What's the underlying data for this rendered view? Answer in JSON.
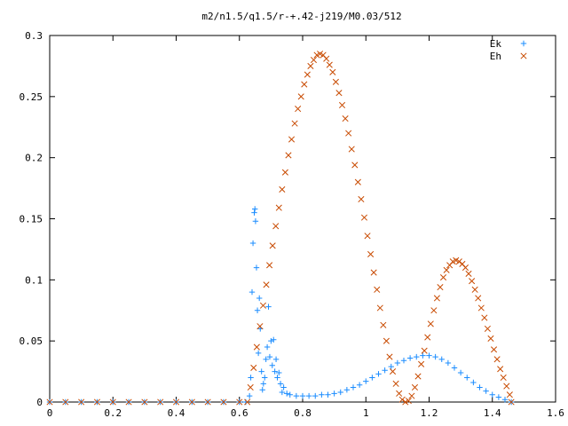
{
  "chart_data": {
    "type": "scatter",
    "title": "m2/n1.5/q1.5/r-+.42-j219/M0.03/512",
    "xlabel": "",
    "ylabel": "",
    "xlim": [
      0,
      1.6
    ],
    "ylim": [
      0,
      0.3
    ],
    "x_ticks": [
      "0",
      "0.2",
      "0.4",
      "0.6",
      "0.8",
      "1",
      "1.2",
      "1.4",
      "1.6"
    ],
    "y_ticks": [
      "0",
      "0.05",
      "0.1",
      "0.15",
      "0.2",
      "0.25",
      "0.3"
    ],
    "legend_position": "top-right",
    "grid": false,
    "series": [
      {
        "name": "Ek",
        "marker": "plus",
        "color": "#1a8cff",
        "points": [
          [
            0.0,
            0.0
          ],
          [
            0.05,
            0.0
          ],
          [
            0.1,
            0.0
          ],
          [
            0.15,
            0.0
          ],
          [
            0.2,
            0.0
          ],
          [
            0.25,
            0.0
          ],
          [
            0.3,
            0.0
          ],
          [
            0.35,
            0.0
          ],
          [
            0.4,
            0.0
          ],
          [
            0.45,
            0.0
          ],
          [
            0.5,
            0.0
          ],
          [
            0.55,
            0.0
          ],
          [
            0.6,
            0.0
          ],
          [
            0.62,
            0.0
          ],
          [
            0.632,
            0.005
          ],
          [
            0.636,
            0.02
          ],
          [
            0.64,
            0.09
          ],
          [
            0.643,
            0.13
          ],
          [
            0.647,
            0.155
          ],
          [
            0.649,
            0.158
          ],
          [
            0.651,
            0.148
          ],
          [
            0.654,
            0.11
          ],
          [
            0.657,
            0.075
          ],
          [
            0.66,
            0.04
          ],
          [
            0.663,
            0.085
          ],
          [
            0.666,
            0.06
          ],
          [
            0.67,
            0.025
          ],
          [
            0.673,
            0.01
          ],
          [
            0.676,
            0.015
          ],
          [
            0.68,
            0.02
          ],
          [
            0.684,
            0.035
          ],
          [
            0.688,
            0.045
          ],
          [
            0.692,
            0.078
          ],
          [
            0.696,
            0.037
          ],
          [
            0.7,
            0.05
          ],
          [
            0.704,
            0.03
          ],
          [
            0.708,
            0.051
          ],
          [
            0.712,
            0.025
          ],
          [
            0.716,
            0.035
          ],
          [
            0.72,
            0.02
          ],
          [
            0.725,
            0.024
          ],
          [
            0.73,
            0.015
          ],
          [
            0.735,
            0.008
          ],
          [
            0.74,
            0.012
          ],
          [
            0.75,
            0.007
          ],
          [
            0.76,
            0.006
          ],
          [
            0.78,
            0.005
          ],
          [
            0.8,
            0.005
          ],
          [
            0.82,
            0.005
          ],
          [
            0.84,
            0.005
          ],
          [
            0.86,
            0.006
          ],
          [
            0.88,
            0.006
          ],
          [
            0.9,
            0.007
          ],
          [
            0.92,
            0.008
          ],
          [
            0.94,
            0.01
          ],
          [
            0.96,
            0.012
          ],
          [
            0.98,
            0.014
          ],
          [
            1.0,
            0.017
          ],
          [
            1.02,
            0.02
          ],
          [
            1.04,
            0.023
          ],
          [
            1.06,
            0.026
          ],
          [
            1.08,
            0.029
          ],
          [
            1.1,
            0.032
          ],
          [
            1.12,
            0.034
          ],
          [
            1.14,
            0.036
          ],
          [
            1.16,
            0.037
          ],
          [
            1.18,
            0.038
          ],
          [
            1.2,
            0.038
          ],
          [
            1.22,
            0.037
          ],
          [
            1.24,
            0.035
          ],
          [
            1.26,
            0.032
          ],
          [
            1.28,
            0.028
          ],
          [
            1.3,
            0.024
          ],
          [
            1.32,
            0.02
          ],
          [
            1.34,
            0.016
          ],
          [
            1.36,
            0.012
          ],
          [
            1.38,
            0.009
          ],
          [
            1.4,
            0.006
          ],
          [
            1.42,
            0.004
          ],
          [
            1.44,
            0.002
          ],
          [
            1.46,
            0.0
          ]
        ]
      },
      {
        "name": "Eh",
        "marker": "cross",
        "color": "#c84a00",
        "points": [
          [
            0.0,
            0.0
          ],
          [
            0.05,
            0.0
          ],
          [
            0.1,
            0.0
          ],
          [
            0.15,
            0.0
          ],
          [
            0.2,
            0.0
          ],
          [
            0.25,
            0.0
          ],
          [
            0.3,
            0.0
          ],
          [
            0.35,
            0.0
          ],
          [
            0.4,
            0.0
          ],
          [
            0.45,
            0.0
          ],
          [
            0.5,
            0.0
          ],
          [
            0.55,
            0.0
          ],
          [
            0.6,
            0.0
          ],
          [
            0.625,
            0.0
          ],
          [
            0.635,
            0.012
          ],
          [
            0.645,
            0.028
          ],
          [
            0.655,
            0.045
          ],
          [
            0.665,
            0.062
          ],
          [
            0.675,
            0.079
          ],
          [
            0.685,
            0.096
          ],
          [
            0.695,
            0.112
          ],
          [
            0.705,
            0.128
          ],
          [
            0.715,
            0.144
          ],
          [
            0.725,
            0.159
          ],
          [
            0.735,
            0.174
          ],
          [
            0.745,
            0.188
          ],
          [
            0.755,
            0.202
          ],
          [
            0.765,
            0.215
          ],
          [
            0.775,
            0.228
          ],
          [
            0.785,
            0.24
          ],
          [
            0.795,
            0.25
          ],
          [
            0.805,
            0.26
          ],
          [
            0.815,
            0.268
          ],
          [
            0.825,
            0.275
          ],
          [
            0.835,
            0.28
          ],
          [
            0.845,
            0.284
          ],
          [
            0.855,
            0.285
          ],
          [
            0.865,
            0.284
          ],
          [
            0.875,
            0.281
          ],
          [
            0.885,
            0.276
          ],
          [
            0.895,
            0.27
          ],
          [
            0.905,
            0.262
          ],
          [
            0.915,
            0.253
          ],
          [
            0.925,
            0.243
          ],
          [
            0.935,
            0.232
          ],
          [
            0.945,
            0.22
          ],
          [
            0.955,
            0.207
          ],
          [
            0.965,
            0.194
          ],
          [
            0.975,
            0.18
          ],
          [
            0.985,
            0.166
          ],
          [
            0.995,
            0.151
          ],
          [
            1.005,
            0.136
          ],
          [
            1.015,
            0.121
          ],
          [
            1.025,
            0.106
          ],
          [
            1.035,
            0.092
          ],
          [
            1.045,
            0.077
          ],
          [
            1.055,
            0.063
          ],
          [
            1.065,
            0.05
          ],
          [
            1.075,
            0.037
          ],
          [
            1.085,
            0.025
          ],
          [
            1.095,
            0.015
          ],
          [
            1.105,
            0.007
          ],
          [
            1.115,
            0.002
          ],
          [
            1.125,
            0.0
          ],
          [
            1.135,
            0.001
          ],
          [
            1.145,
            0.005
          ],
          [
            1.155,
            0.012
          ],
          [
            1.165,
            0.021
          ],
          [
            1.175,
            0.031
          ],
          [
            1.185,
            0.042
          ],
          [
            1.195,
            0.053
          ],
          [
            1.205,
            0.064
          ],
          [
            1.215,
            0.075
          ],
          [
            1.225,
            0.085
          ],
          [
            1.235,
            0.094
          ],
          [
            1.245,
            0.102
          ],
          [
            1.255,
            0.108
          ],
          [
            1.265,
            0.112
          ],
          [
            1.275,
            0.115
          ],
          [
            1.285,
            0.116
          ],
          [
            1.295,
            0.115
          ],
          [
            1.305,
            0.113
          ],
          [
            1.315,
            0.11
          ],
          [
            1.325,
            0.105
          ],
          [
            1.335,
            0.099
          ],
          [
            1.345,
            0.092
          ],
          [
            1.355,
            0.085
          ],
          [
            1.365,
            0.077
          ],
          [
            1.375,
            0.069
          ],
          [
            1.385,
            0.06
          ],
          [
            1.395,
            0.052
          ],
          [
            1.405,
            0.043
          ],
          [
            1.415,
            0.035
          ],
          [
            1.425,
            0.027
          ],
          [
            1.435,
            0.02
          ],
          [
            1.445,
            0.013
          ],
          [
            1.455,
            0.006
          ],
          [
            1.46,
            0.0
          ]
        ]
      }
    ]
  }
}
